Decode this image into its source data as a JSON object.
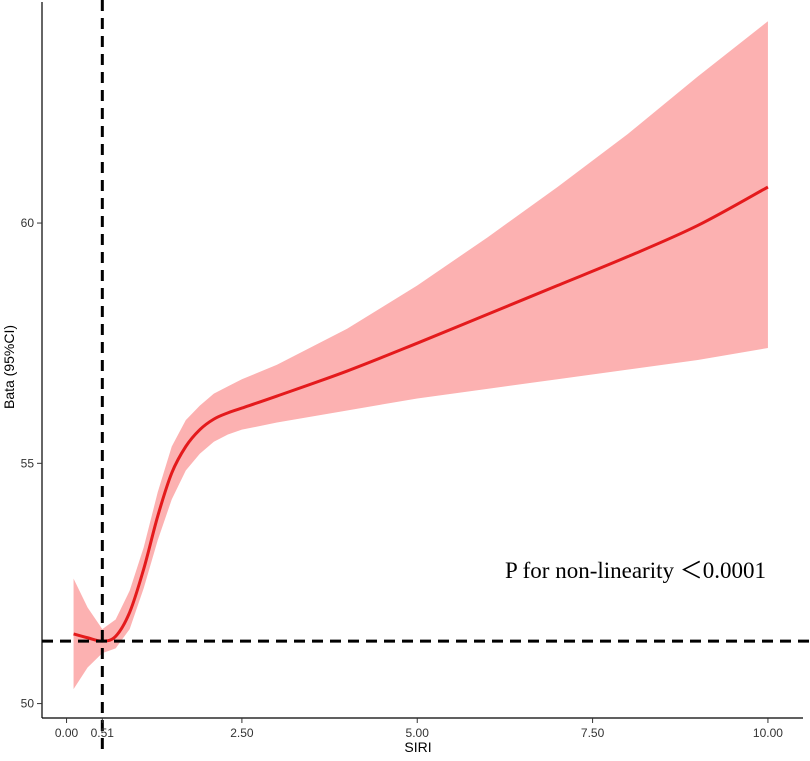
{
  "chart_data": {
    "type": "line",
    "xlabel": "SIRI",
    "ylabel": "Bata (95%CI)",
    "xlim": [
      -0.35,
      10.5
    ],
    "ylim": [
      49.7,
      64.6
    ],
    "x_ticks": [
      {
        "value": 0.0,
        "label": "0.00"
      },
      {
        "value": 0.51,
        "label": "0.51"
      },
      {
        "value": 2.5,
        "label": "2.50"
      },
      {
        "value": 5.0,
        "label": "5.00"
      },
      {
        "value": 7.5,
        "label": "7.50"
      },
      {
        "value": 10.0,
        "label": "10.00"
      }
    ],
    "y_ticks": [
      {
        "value": 50,
        "label": "50"
      },
      {
        "value": 55,
        "label": "55"
      },
      {
        "value": 60,
        "label": "60"
      }
    ],
    "reference_lines": {
      "vertical_x": 0.51,
      "horizontal_y": 51.3
    },
    "annotation": "P for non-linearity ＜0.0001",
    "colors": {
      "line": "#e41a1c",
      "ribbon": "#fcb1b1",
      "reference": "#000000",
      "axis": "#000000"
    },
    "series": [
      {
        "x": [
          0.1,
          0.3,
          0.51,
          0.7,
          0.9,
          1.1,
          1.3,
          1.5,
          1.7,
          1.9,
          2.1,
          2.3,
          2.5,
          3.0,
          4.0,
          5.0,
          6.0,
          7.0,
          8.0,
          9.0,
          10.0
        ],
        "y": [
          51.45,
          51.37,
          51.3,
          51.4,
          51.9,
          52.8,
          53.9,
          54.8,
          55.35,
          55.7,
          55.92,
          56.05,
          56.15,
          56.4,
          56.92,
          57.5,
          58.1,
          58.7,
          59.3,
          59.95,
          60.75
        ],
        "lower": [
          50.3,
          50.75,
          51.05,
          51.15,
          51.55,
          52.4,
          53.4,
          54.25,
          54.85,
          55.2,
          55.45,
          55.6,
          55.7,
          55.85,
          56.1,
          56.35,
          56.55,
          56.75,
          56.95,
          57.15,
          57.4
        ],
        "upper": [
          52.6,
          52.0,
          51.55,
          51.75,
          52.35,
          53.25,
          54.4,
          55.35,
          55.9,
          56.2,
          56.45,
          56.6,
          56.75,
          57.05,
          57.8,
          58.7,
          59.7,
          60.75,
          61.85,
          63.05,
          64.2
        ]
      }
    ]
  }
}
